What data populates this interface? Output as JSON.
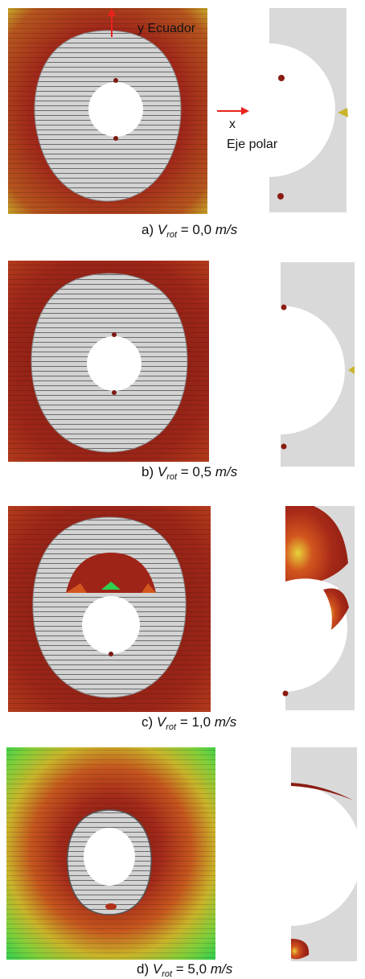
{
  "axes": {
    "y_label": "y Ecuador",
    "x_label": "x",
    "polar_label": "Eje polar"
  },
  "panels": [
    {
      "letter": "a)",
      "symbol": "V",
      "subscript": "rot",
      "eq": "= 0,0",
      "unit": "m/s"
    },
    {
      "letter": "b)",
      "symbol": "V",
      "subscript": "rot",
      "eq": "= 0,5",
      "unit": "m/s"
    },
    {
      "letter": "c)",
      "symbol": "V",
      "subscript": "rot",
      "eq": "= 1,0",
      "unit": "m/s"
    },
    {
      "letter": "d)",
      "symbol": "V",
      "subscript": "rot",
      "eq": "= 5,0",
      "unit": "m/s"
    }
  ],
  "colors": {
    "field_red": "#9e2418",
    "field_edge_yellow": "#c8c02a",
    "field_green": "#44cc44",
    "ice_grey": "#d4d4d4",
    "side_panel": "#d9d9d9",
    "arrow": "#e8231c"
  }
}
